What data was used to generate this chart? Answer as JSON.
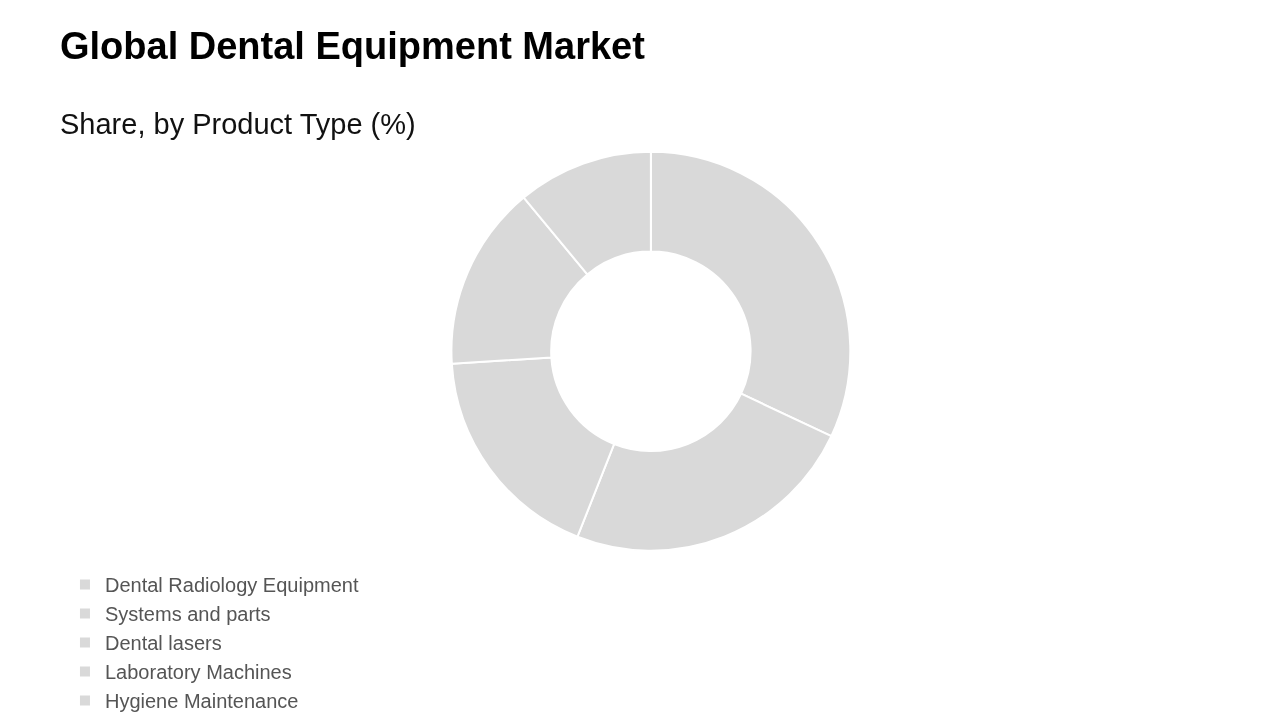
{
  "chart_data": {
    "type": "donut",
    "title": "Global Dental Equipment Market",
    "subtitle": "Share, by Product Type (%)",
    "categories": [
      "Dental Radiology Equipment",
      "Systems and parts",
      "Dental lasers",
      "Laboratory Machines",
      "Hygiene Maintenance"
    ],
    "values": [
      32,
      24,
      18,
      15,
      11
    ],
    "colors": [
      "#d9d9d9",
      "#d9d9d9",
      "#d9d9d9",
      "#d9d9d9",
      "#d9d9d9"
    ],
    "legend": "bottom"
  }
}
